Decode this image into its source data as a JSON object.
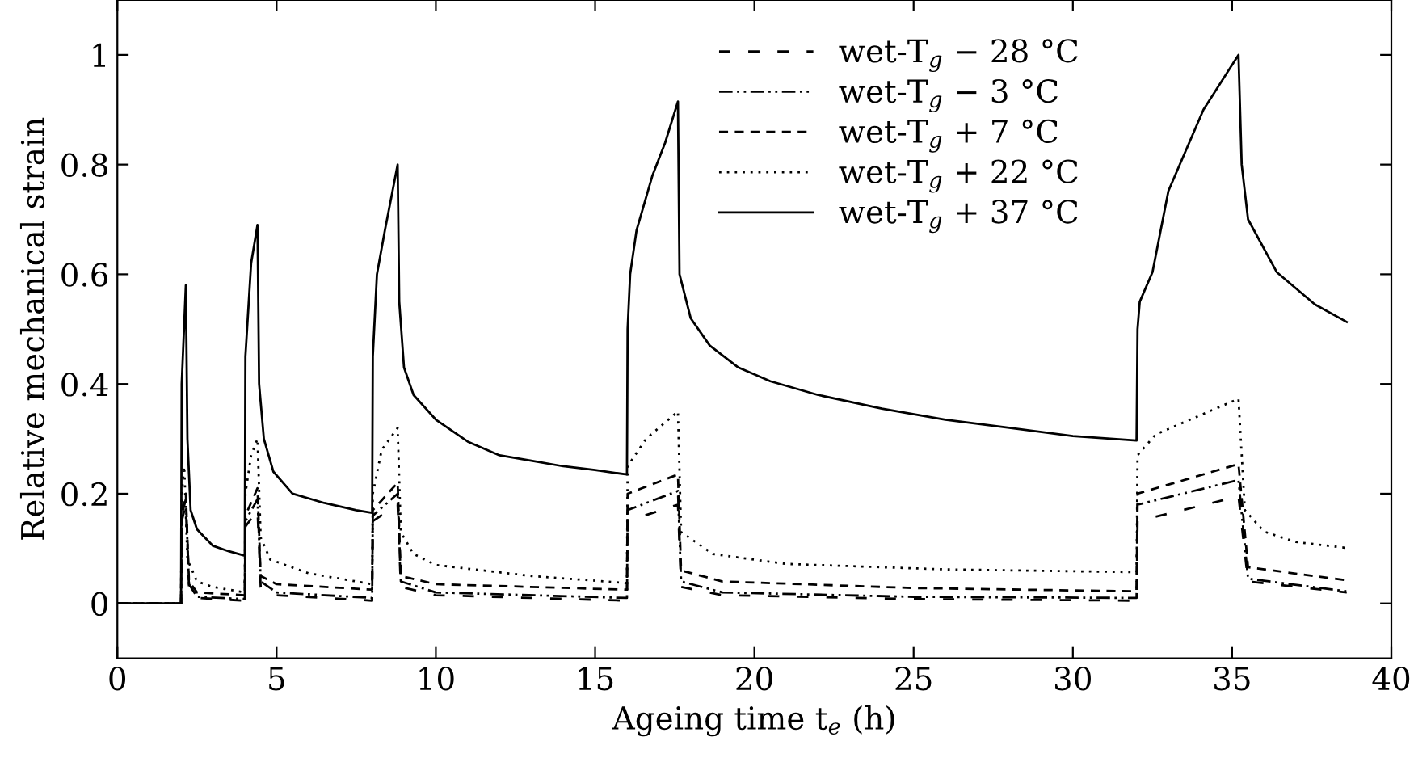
{
  "chart_data": {
    "type": "line",
    "xlabel": "Ageing time t$_{e}$ (h)",
    "ylabel": "Relative mechanical strain",
    "xlim": [
      0,
      40
    ],
    "ylim": [
      -0.1,
      1.1
    ],
    "xticks": [
      0,
      5,
      10,
      15,
      20,
      25,
      30,
      35,
      40
    ],
    "yticks": [
      0,
      0.2,
      0.4,
      0.6,
      0.8,
      1
    ],
    "grid": false,
    "legend": "top right",
    "marker": "none",
    "series": [
      {
        "name": "wet-T$_{g}$ − 28 °C",
        "color": "#000000",
        "line_style": "loosely dashed",
        "x": [
          0,
          2,
          2.02,
          2.15,
          2.25,
          2.5,
          4,
          4.02,
          4.4,
          4.5,
          5,
          8,
          8.02,
          8.8,
          8.9,
          10,
          16,
          16.02,
          17.6,
          17.7,
          19,
          25,
          32,
          32.03,
          35.2,
          35.5,
          38.6
        ],
        "values": [
          0,
          0,
          0.15,
          0.18,
          0.03,
          0.01,
          0.005,
          0.14,
          0.17,
          0.03,
          0.015,
          0.005,
          0.15,
          0.18,
          0.03,
          0.015,
          0.005,
          0.15,
          0.18,
          0.03,
          0.015,
          0.008,
          0.005,
          0.15,
          0.195,
          0.04,
          0.02
        ]
      },
      {
        "name": "wet-T$_{g}$ − 3 °C",
        "color": "#000000",
        "line_style": "dashdotdot",
        "x": [
          0,
          2,
          2.02,
          2.15,
          2.25,
          2.5,
          4,
          4.02,
          4.4,
          4.5,
          5,
          8,
          8.02,
          8.8,
          8.9,
          10,
          16,
          16.02,
          17.6,
          17.7,
          19,
          25,
          32,
          32.03,
          35.2,
          35.5,
          38.6
        ],
        "values": [
          0,
          0,
          0.16,
          0.19,
          0.035,
          0.012,
          0.008,
          0.15,
          0.19,
          0.04,
          0.02,
          0.01,
          0.16,
          0.2,
          0.04,
          0.02,
          0.01,
          0.17,
          0.205,
          0.04,
          0.02,
          0.012,
          0.01,
          0.18,
          0.225,
          0.045,
          0.022
        ]
      },
      {
        "name": "wet-T$_{g}$ + 7 °C",
        "color": "#000000",
        "line_style": "dashed",
        "x": [
          0,
          2,
          2.02,
          2.15,
          2.25,
          2.5,
          4,
          4.02,
          4.4,
          4.5,
          5,
          8,
          8.02,
          8.8,
          8.9,
          10,
          16,
          16.02,
          17.6,
          17.7,
          19,
          25,
          32,
          32.03,
          35.2,
          35.5,
          38.6
        ],
        "values": [
          0,
          0,
          0.17,
          0.2,
          0.04,
          0.02,
          0.015,
          0.16,
          0.21,
          0.05,
          0.035,
          0.025,
          0.17,
          0.22,
          0.05,
          0.035,
          0.025,
          0.2,
          0.235,
          0.06,
          0.04,
          0.028,
          0.022,
          0.2,
          0.254,
          0.066,
          0.042
        ]
      },
      {
        "name": "wet-T$_{g}$ + 22 °C",
        "color": "#000000",
        "line_style": "dotted",
        "x": [
          0,
          2,
          2.02,
          2.1,
          2.2,
          2.5,
          3,
          4,
          4.02,
          4.2,
          4.4,
          4.5,
          4.8,
          6,
          8,
          8.02,
          8.3,
          8.8,
          8.9,
          9.3,
          10,
          13,
          16,
          16.02,
          16.6,
          17.6,
          17.7,
          18.7,
          21,
          26,
          32,
          32.03,
          32.6,
          35.2,
          35.4,
          36,
          37,
          38.6
        ],
        "values": [
          0,
          0,
          0.2,
          0.25,
          0.08,
          0.04,
          0.03,
          0.02,
          0.2,
          0.27,
          0.3,
          0.12,
          0.08,
          0.055,
          0.035,
          0.2,
          0.28,
          0.32,
          0.13,
          0.09,
          0.07,
          0.05,
          0.037,
          0.25,
          0.3,
          0.35,
          0.13,
          0.09,
          0.072,
          0.062,
          0.057,
          0.27,
          0.308,
          0.373,
          0.17,
          0.131,
          0.112,
          0.101
        ]
      },
      {
        "name": "wet-T$_{g}$ + 37 °C",
        "color": "#000000",
        "line_style": "solid",
        "x": [
          0,
          2,
          2.02,
          2.15,
          2.2,
          2.3,
          2.5,
          3,
          3.5,
          4,
          4.02,
          4.2,
          4.4,
          4.45,
          4.6,
          4.9,
          5.5,
          6.5,
          7.5,
          8,
          8.02,
          8.15,
          8.4,
          8.8,
          8.85,
          9,
          9.3,
          10,
          11,
          12,
          13,
          14,
          15,
          16,
          16.02,
          16.1,
          16.3,
          16.8,
          17.2,
          17.6,
          17.65,
          18,
          18.6,
          19.5,
          20.5,
          22,
          24,
          26,
          28,
          30,
          32,
          32.03,
          32.1,
          32.5,
          33,
          34.1,
          35.2,
          35.3,
          35.5,
          36.4,
          37.6,
          38.6
        ],
        "values": [
          0,
          0,
          0.4,
          0.58,
          0.3,
          0.17,
          0.135,
          0.105,
          0.095,
          0.087,
          0.45,
          0.62,
          0.69,
          0.4,
          0.3,
          0.24,
          0.2,
          0.183,
          0.17,
          0.165,
          0.45,
          0.6,
          0.68,
          0.8,
          0.55,
          0.43,
          0.38,
          0.335,
          0.295,
          0.27,
          0.26,
          0.25,
          0.243,
          0.235,
          0.5,
          0.6,
          0.68,
          0.78,
          0.84,
          0.915,
          0.6,
          0.52,
          0.47,
          0.43,
          0.405,
          0.38,
          0.355,
          0.335,
          0.32,
          0.305,
          0.297,
          0.5,
          0.55,
          0.604,
          0.752,
          0.9,
          1.0,
          0.8,
          0.7,
          0.604,
          0.545,
          0.513
        ]
      }
    ]
  }
}
